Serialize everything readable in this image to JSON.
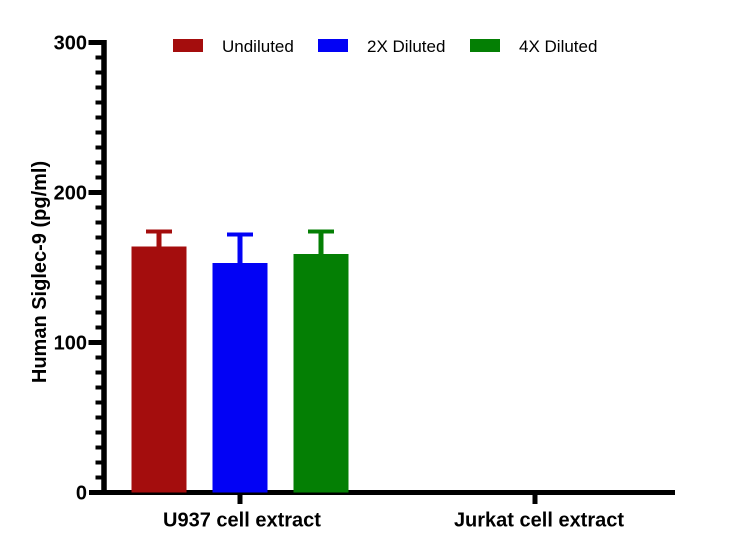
{
  "chart_data": {
    "type": "bar",
    "title": "",
    "ylabel": "Human Siglec-9 (pg/ml)",
    "xlabel": "",
    "ylim": [
      0,
      300
    ],
    "yticks_major": [
      0,
      100,
      200,
      300
    ],
    "ytick_minor_step": 10,
    "grid": false,
    "legend_position": "top",
    "categories": [
      "U937 cell extract",
      "Jurkat cell extract"
    ],
    "series": [
      {
        "name": "Undiluted",
        "color": "#A40D0D",
        "values": [
          164,
          0
        ],
        "error_plus": [
          10,
          0
        ]
      },
      {
        "name": "2X Diluted",
        "color": "#0202F5",
        "values": [
          153,
          0
        ],
        "error_plus": [
          19,
          0
        ]
      },
      {
        "name": "4X Diluted",
        "color": "#047F04",
        "values": [
          159,
          0
        ],
        "error_plus": [
          15,
          0
        ]
      }
    ],
    "axis_color": "#000000",
    "text_color": "#000000",
    "background": "#FFFFFF"
  }
}
